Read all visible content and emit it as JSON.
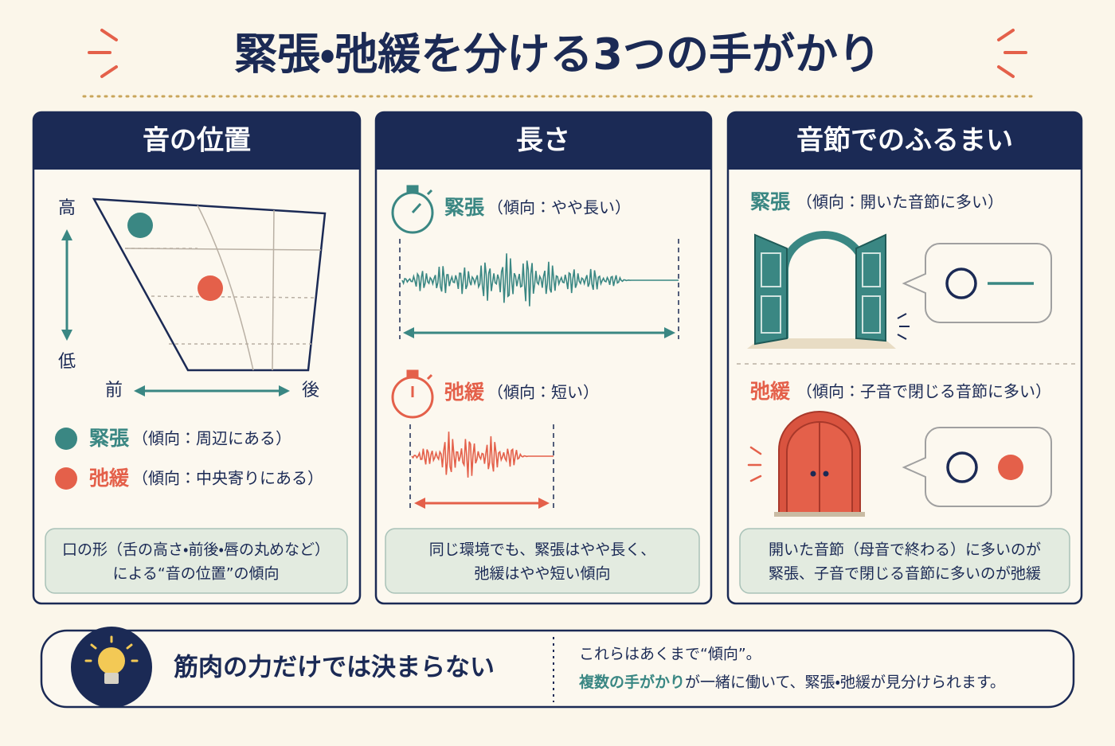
{
  "title": "緊張・弛緩を分ける3つの手がかり",
  "panels": [
    {
      "header": "音の位置",
      "axis": {
        "high": "高",
        "low": "低",
        "front": "前",
        "back": "後"
      },
      "tense": {
        "label": "緊張",
        "tendency": "（傾向：周辺にある）"
      },
      "lax": {
        "label": "弛緩",
        "tendency": "（傾向：中央寄りにある）"
      },
      "note": [
        "口の形（舌の高さ・前後・唇の丸めなど）",
        "による“音の位置”の傾向"
      ]
    },
    {
      "header": "長さ",
      "tense": {
        "label": "緊張",
        "tendency": "（傾向：やや長い）"
      },
      "lax": {
        "label": "弛緩",
        "tendency": "（傾向：短い）"
      },
      "note": [
        "同じ環境でも、緊張はやや長く、",
        "弛緩はやや短い傾向"
      ]
    },
    {
      "header": "音節でのふるまい",
      "tense": {
        "label": "緊張",
        "tendency": "（傾向：開いた音節に多い）"
      },
      "lax": {
        "label": "弛緩",
        "tendency": "（傾向：子音で閉じる音節に多い）"
      },
      "note": [
        "開いた音節（母音で終わる）に多いのが",
        "緊張、子音で閉じる音節に多いのが弛緩"
      ]
    }
  ],
  "footer": {
    "main": "筋肉の力だけでは決まらない",
    "line1": "これらはあくまで“傾向”。",
    "line2_emphasis": "複数の手がかり",
    "line2_rest": "が一緒に働いて、緊張・弛緩が見分けられます。"
  }
}
